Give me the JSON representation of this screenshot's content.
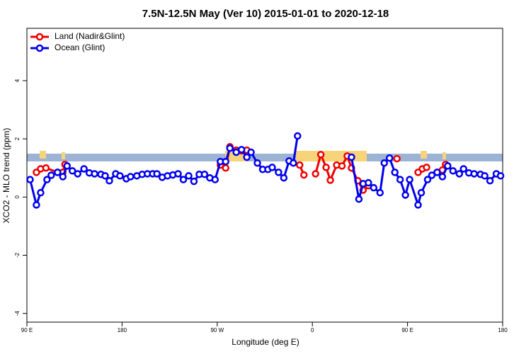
{
  "chart_data": {
    "type": "line",
    "title": "7.5N-12.5N May (Ver 10)   2015-01-01 to 2020-12-18",
    "x_label": "Longitude (deg E)",
    "y_label": "XCO2 - MLO trend (ppm)",
    "xlim": [
      90,
      540
    ],
    "ylim": [
      -4.3,
      5.8
    ],
    "xticks": [
      {
        "value": 90,
        "label": "90 E"
      },
      180,
      {
        "value": 270,
        "label": "90 W"
      },
      {
        "value": 360,
        "label": "0"
      },
      {
        "value": 450,
        "label": "90 E"
      },
      {
        "value": 540,
        "label": "180"
      }
    ],
    "yticks": [
      -4,
      -2,
      0,
      2,
      4
    ],
    "legend": "top-left",
    "series": [
      {
        "name": "Land (Nadir&Glint)",
        "color": "#ee0000",
        "x": [
          99,
          103,
          108,
          119,
          124,
          126,
          null,
          273,
          278,
          282,
          288,
          293,
          298,
          null,
          348,
          352,
          null,
          363,
          368,
          373,
          377,
          383,
          388,
          393,
          397,
          403,
          408,
          413,
          null,
          440,
          null,
          460,
          464,
          468,
          null,
          478,
          483,
          486
        ],
        "values": [
          0.85,
          0.97,
          1.0,
          0.85,
          0.85,
          1.12,
          null,
          1.1,
          1.0,
          1.73,
          1.61,
          1.59,
          1.61,
          null,
          1.1,
          0.76,
          null,
          0.8,
          1.46,
          1.02,
          0.58,
          1.1,
          1.07,
          1.41,
          1.0,
          0.56,
          0.24,
          0.39,
          null,
          1.32,
          null,
          0.85,
          0.97,
          1.02,
          null,
          0.85,
          0.93,
          1.12
        ]
      },
      {
        "name": "Ocean (Glint)",
        "color": "#0000ee",
        "x": [
          93,
          99,
          103,
          109,
          113,
          119,
          124,
          128,
          133,
          138,
          144,
          149,
          154,
          160,
          164,
          168,
          174,
          178,
          184,
          188,
          194,
          199,
          204,
          209,
          213,
          218,
          223,
          228,
          233,
          238,
          243,
          248,
          253,
          258,
          263,
          268,
          273,
          278,
          282,
          288,
          293,
          298,
          302,
          308,
          313,
          318,
          322,
          328,
          333,
          338,
          342,
          346,
          null,
          397,
          404,
          408,
          413,
          418,
          424,
          428,
          433,
          438,
          443,
          448,
          452,
          460,
          463,
          469,
          473,
          478,
          483,
          488,
          493,
          499,
          503,
          508,
          513,
          519,
          523,
          528,
          534,
          538
        ],
        "values": [
          0.6,
          -0.27,
          0.15,
          0.6,
          0.75,
          0.85,
          0.7,
          1.07,
          0.9,
          0.8,
          0.97,
          0.83,
          0.8,
          0.78,
          0.73,
          0.56,
          0.8,
          0.73,
          0.63,
          0.7,
          0.73,
          0.78,
          0.8,
          0.8,
          0.8,
          0.68,
          0.73,
          0.76,
          0.8,
          0.6,
          0.73,
          0.54,
          0.78,
          0.78,
          0.66,
          0.6,
          1.22,
          1.22,
          1.68,
          1.54,
          1.63,
          1.37,
          1.54,
          1.17,
          0.95,
          0.95,
          1.02,
          0.85,
          0.66,
          1.24,
          1.17,
          2.1,
          null,
          1.37,
          -0.07,
          0.46,
          0.49,
          0.32,
          0.15,
          1.17,
          1.34,
          0.85,
          0.6,
          0.07,
          0.6,
          -0.27,
          0.15,
          0.6,
          0.75,
          0.85,
          0.7,
          1.07,
          0.9,
          0.8,
          0.97,
          0.83,
          0.8,
          0.78,
          0.73,
          0.56,
          0.8,
          0.73
        ]
      }
    ]
  }
}
